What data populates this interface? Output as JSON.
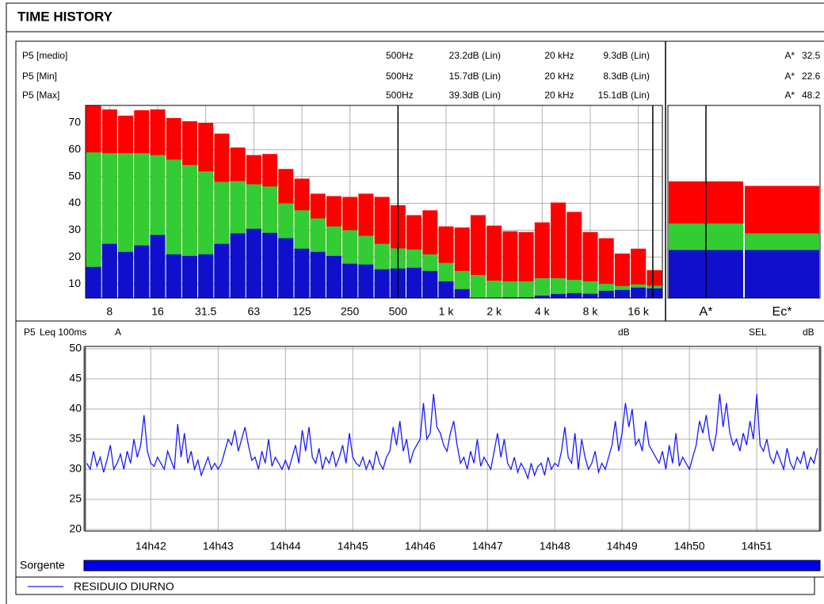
{
  "title": "TIME HISTORY",
  "source_label": "Sorgente",
  "chart_data": [
    {
      "type": "bar",
      "overlay": true,
      "grid": true,
      "categories": [
        null,
        "8",
        null,
        null,
        "16",
        null,
        null,
        "31.5",
        null,
        null,
        "63",
        null,
        null,
        "125",
        null,
        null,
        "250",
        null,
        null,
        "500",
        null,
        null,
        "1 k",
        null,
        null,
        "2 k",
        null,
        null,
        "4 k",
        null,
        null,
        "8 k",
        null,
        null,
        "16 k",
        null
      ],
      "series": [
        {
          "name": "P5 [medio]",
          "color": "#33cc33",
          "values": [
            59,
            58.7,
            58.7,
            58.7,
            58,
            56.3,
            54.3,
            51.9,
            48,
            48.3,
            47.1,
            46.3,
            40,
            37.4,
            34.4,
            31.4,
            30,
            27.9,
            24.9,
            23.2,
            22.8,
            21,
            17.8,
            14.8,
            13.3,
            11.2,
            10.9,
            10.9,
            12.1,
            12.1,
            11.5,
            10.9,
            10,
            9.2,
            9.8,
            9.3
          ]
        },
        {
          "name": "P5 [Min]",
          "color": "#1010cc",
          "values": [
            16.3,
            24.9,
            21.9,
            24.3,
            28.2,
            21,
            20.4,
            21,
            24.9,
            28.8,
            30.5,
            29,
            27,
            23.1,
            21.9,
            20.4,
            17.5,
            17.2,
            15.4,
            15.7,
            16,
            14.8,
            10.9,
            8,
            4.8,
            4.8,
            5,
            5,
            5.6,
            6.2,
            6.5,
            6.3,
            7.4,
            7.7,
            8.6,
            8.3
          ]
        },
        {
          "name": "P5 [Max]",
          "color": "#ff0000",
          "values": [
            76.5,
            75,
            72.7,
            74.7,
            75,
            71.8,
            70.6,
            70,
            66,
            60.8,
            58,
            58.4,
            52.8,
            49.2,
            43.6,
            42.7,
            42.4,
            43.6,
            42.4,
            39.3,
            35.6,
            37.4,
            31.4,
            31,
            35.6,
            31.7,
            29.6,
            29.3,
            32.9,
            40.3,
            36.8,
            29.3,
            27,
            21.3,
            23.1,
            15.1
          ]
        }
      ],
      "cursor_readouts": [
        {
          "frequency": "500",
          "frequency_unit": "Hz",
          "values": [
            23.2,
            15.7,
            39.3
          ],
          "unit": "dB (Lin)"
        },
        {
          "frequency": "20 k",
          "frequency_unit": "Hz",
          "values": [
            9.3,
            8.3,
            15.1
          ],
          "unit": "dB (Lin)"
        }
      ],
      "ylim": [
        4.7,
        76.5
      ],
      "yticks": [
        10,
        20,
        30,
        40,
        50,
        60,
        70
      ]
    },
    {
      "type": "bar",
      "overlay": true,
      "categories": [
        "A*",
        "Ec*"
      ],
      "series": [
        {
          "color": "#33cc33",
          "values": [
            32.5,
            28.8
          ]
        },
        {
          "color": "#1010cc",
          "values": [
            22.6,
            22.6
          ]
        },
        {
          "color": "#ff0000",
          "values": [
            48.2,
            46.5
          ]
        }
      ],
      "ylim": [
        4.7,
        76.5
      ]
    },
    {
      "type": "line",
      "grid": true,
      "channel": "P5",
      "parameter": "Leq 100ms",
      "weighting": "A",
      "y_unit": "dB",
      "sel_label": "SEL",
      "sel_unit": "dB",
      "x": [
        881.05,
        881.1,
        881.15,
        881.2,
        881.25,
        881.3,
        881.35,
        881.4,
        881.45,
        881.5,
        881.55,
        881.6,
        881.65,
        881.7,
        881.75,
        881.8,
        881.85,
        881.9,
        881.95,
        882,
        882.05,
        882.1,
        882.15,
        882.2,
        882.25,
        882.3,
        882.35,
        882.4,
        882.45,
        882.5,
        882.55,
        882.6,
        882.65,
        882.7,
        882.75,
        882.8,
        882.85,
        882.9,
        882.95,
        883,
        883.05,
        883.1,
        883.15,
        883.2,
        883.25,
        883.3,
        883.35,
        883.4,
        883.45,
        883.5,
        883.55,
        883.6,
        883.65,
        883.7,
        883.75,
        883.8,
        883.85,
        883.9,
        883.95,
        884,
        884.05,
        884.1,
        884.15,
        884.2,
        884.25,
        884.3,
        884.35,
        884.4,
        884.45,
        884.5,
        884.55,
        884.6,
        884.65,
        884.7,
        884.75,
        884.8,
        884.85,
        884.9,
        884.95,
        885,
        885.05,
        885.1,
        885.15,
        885.2,
        885.25,
        885.3,
        885.35,
        885.4,
        885.45,
        885.5,
        885.55,
        885.6,
        885.65,
        885.7,
        885.75,
        885.8,
        885.85,
        885.9,
        885.95,
        886,
        886.05,
        886.1,
        886.15,
        886.2,
        886.25,
        886.3,
        886.35,
        886.4,
        886.45,
        886.5,
        886.55,
        886.6,
        886.65,
        886.7,
        886.75,
        886.8,
        886.85,
        886.9,
        886.95,
        887,
        887.05,
        887.1,
        887.15,
        887.2,
        887.25,
        887.3,
        887.35,
        887.4,
        887.45,
        887.5,
        887.55,
        887.6,
        887.65,
        887.7,
        887.75,
        887.8,
        887.85,
        887.9,
        887.95,
        888,
        888.05,
        888.1,
        888.15,
        888.2,
        888.25,
        888.3,
        888.35,
        888.4,
        888.45,
        888.5,
        888.55,
        888.6,
        888.65,
        888.7,
        888.75,
        888.8,
        888.85,
        888.9,
        888.95,
        889,
        889.05,
        889.1,
        889.15,
        889.2,
        889.25,
        889.3,
        889.35,
        889.4,
        889.45,
        889.5,
        889.55,
        889.6,
        889.65,
        889.7,
        889.75,
        889.8,
        889.85,
        889.9,
        889.95,
        890,
        890.05,
        890.1,
        890.15,
        890.2,
        890.25,
        890.3,
        890.35,
        890.4,
        890.45,
        890.5,
        890.55,
        890.6,
        890.65,
        890.7,
        890.75,
        890.8,
        890.85,
        890.9,
        890.95,
        891,
        891.05,
        891.1,
        891.15,
        891.2,
        891.25,
        891.3,
        891.35,
        891.4,
        891.45,
        891.5,
        891.55,
        891.6,
        891.65,
        891.7,
        891.75,
        891.8,
        891.85,
        891.9
      ],
      "series": [
        {
          "name": "RESIDUIO DIURNO",
          "color": "#1a1aff",
          "values": [
            31,
            30,
            33,
            30.5,
            32,
            29.5,
            31.5,
            34,
            30,
            31,
            32.5,
            30,
            33,
            31,
            35,
            32,
            34,
            39,
            33,
            31,
            30.5,
            32,
            31,
            30,
            33,
            31.5,
            30,
            37.5,
            32,
            36,
            31,
            33,
            30,
            31.5,
            29,
            30.5,
            32,
            30,
            31,
            30,
            31,
            33,
            35,
            34,
            36.5,
            33,
            35,
            37,
            34,
            31.5,
            32,
            30,
            33,
            31,
            35,
            30.5,
            32,
            31,
            30,
            31.5,
            30,
            32,
            34,
            31,
            36.5,
            33,
            37,
            32,
            31,
            33.5,
            30,
            32,
            31,
            33,
            30.5,
            32,
            34,
            31,
            36,
            32,
            31,
            30.5,
            32,
            30,
            31.5,
            30,
            33,
            31,
            30,
            32,
            33,
            37,
            34,
            38,
            33,
            35,
            31,
            33,
            34,
            35,
            41,
            35,
            36,
            42.5,
            37,
            36,
            34,
            33,
            36,
            38,
            34,
            31,
            32,
            30,
            33,
            31,
            35,
            30.5,
            32,
            31,
            30,
            33,
            36,
            32,
            35,
            31,
            30,
            32,
            29.5,
            31,
            30,
            28.5,
            31,
            29,
            30.5,
            31,
            29,
            32,
            30,
            31,
            30.5,
            33,
            37,
            32,
            31,
            36,
            30,
            35,
            32,
            30,
            31,
            33,
            29.5,
            31,
            30,
            32,
            34,
            38,
            33,
            36,
            41,
            37,
            40,
            34,
            35,
            33,
            38,
            34,
            33,
            32,
            31,
            33,
            30,
            34,
            31,
            36,
            30.5,
            32,
            31,
            30,
            32,
            34,
            38,
            36,
            39,
            35,
            33,
            36,
            42.5,
            37,
            41,
            36,
            34,
            35,
            33,
            36,
            34,
            38,
            35,
            42.5,
            34,
            33,
            35,
            32,
            31,
            33,
            31.5,
            30,
            33.5,
            31,
            30,
            32,
            31,
            33,
            30,
            32,
            31,
            33.5
          ]
        }
      ],
      "xlim": [
        881.02,
        891.94
      ],
      "ylim": [
        19.74,
        50.4
      ],
      "xticks": [
        {
          "value": 882,
          "label": "14h42"
        },
        {
          "value": 883,
          "label": "14h43"
        },
        {
          "value": 884,
          "label": "14h44"
        },
        {
          "value": 885,
          "label": "14h45"
        },
        {
          "value": 886,
          "label": "14h46"
        },
        {
          "value": 887,
          "label": "14h47"
        },
        {
          "value": 888,
          "label": "14h48"
        },
        {
          "value": 889,
          "label": "14h49"
        },
        {
          "value": 890,
          "label": "14h50"
        },
        {
          "value": 891,
          "label": "14h51"
        }
      ],
      "yticks": [
        20,
        25,
        30,
        35,
        40,
        45,
        50
      ]
    }
  ]
}
